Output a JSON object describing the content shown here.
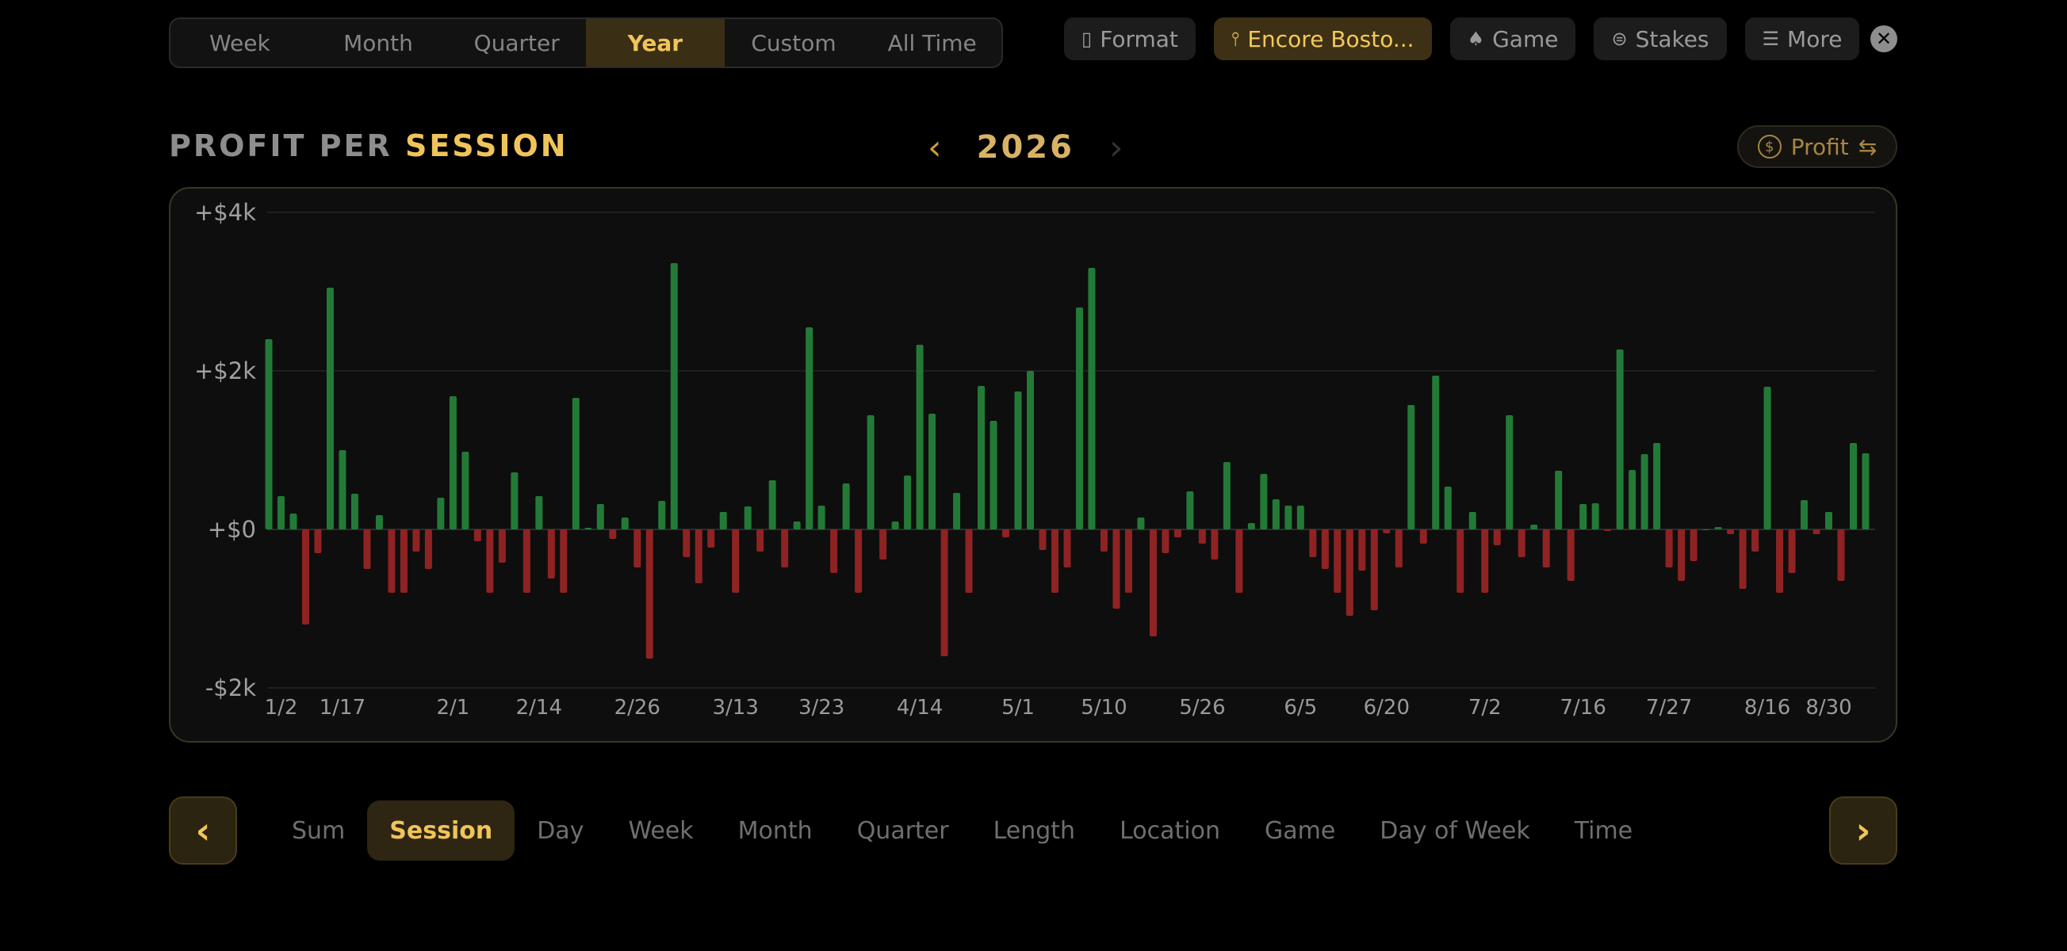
{
  "range_tabs": [
    {
      "label": "Week",
      "active": false
    },
    {
      "label": "Month",
      "active": false
    },
    {
      "label": "Quarter",
      "active": false
    },
    {
      "label": "Year",
      "active": true
    },
    {
      "label": "Custom",
      "active": false
    },
    {
      "label": "All Time",
      "active": false
    }
  ],
  "filters": [
    {
      "label": "Format",
      "icon": "format-icon",
      "glyph": "▯",
      "active": false
    },
    {
      "label": "Encore Bosto...",
      "icon": "location-pin-icon",
      "glyph": "⫯",
      "active": true
    },
    {
      "label": "Game",
      "icon": "spade-icon",
      "glyph": "♠",
      "active": false
    },
    {
      "label": "Stakes",
      "icon": "dollar-coin-icon",
      "glyph": "⊜",
      "active": false
    },
    {
      "label": "More",
      "icon": "sliders-icon",
      "glyph": "☰",
      "active": false
    }
  ],
  "close_glyph": "✕",
  "title": {
    "prefix": "PROFIT PER ",
    "highlight": "SESSION"
  },
  "year_nav": {
    "prev": "‹",
    "year": "2026",
    "next": "›"
  },
  "metric_toggle": {
    "label": "Profit",
    "coin": "$",
    "swap": "⇆"
  },
  "colors": {
    "positive": "#237a37",
    "negative": "#8f2323",
    "accent": "#f0c45a"
  },
  "chart_data": {
    "type": "bar",
    "title": "",
    "ylabel": "",
    "ylim": [
      -2000,
      4000
    ],
    "y_ticks": [
      {
        "value": 4000,
        "label": "+$4k"
      },
      {
        "value": 2000,
        "label": "+$2k"
      },
      {
        "value": 0,
        "label": "+$0"
      },
      {
        "value": -2000,
        "label": "-$2k"
      }
    ],
    "x_tick_labels": [
      {
        "index": 1,
        "label": "1/2"
      },
      {
        "index": 6,
        "label": "1/17"
      },
      {
        "index": 15,
        "label": "2/1"
      },
      {
        "index": 22,
        "label": "2/14"
      },
      {
        "index": 30,
        "label": "2/26"
      },
      {
        "index": 38,
        "label": "3/13"
      },
      {
        "index": 45,
        "label": "3/23"
      },
      {
        "index": 53,
        "label": "4/14"
      },
      {
        "index": 61,
        "label": "5/1"
      },
      {
        "index": 68,
        "label": "5/10"
      },
      {
        "index": 76,
        "label": "5/26"
      },
      {
        "index": 84,
        "label": "6/5"
      },
      {
        "index": 91,
        "label": "6/20"
      },
      {
        "index": 99,
        "label": "7/2"
      },
      {
        "index": 107,
        "label": "7/16"
      },
      {
        "index": 114,
        "label": "7/27"
      },
      {
        "index": 122,
        "label": "8/16"
      },
      {
        "index": 127,
        "label": "8/30"
      }
    ],
    "values": [
      2400,
      420,
      200,
      -1200,
      -300,
      3050,
      1000,
      450,
      -500,
      180,
      -800,
      -800,
      -280,
      -500,
      400,
      1680,
      980,
      -150,
      -800,
      -420,
      720,
      -800,
      420,
      -620,
      -800,
      1660,
      20,
      320,
      -120,
      150,
      -480,
      -1630,
      360,
      3360,
      -350,
      -680,
      -230,
      220,
      -800,
      290,
      -280,
      620,
      -480,
      100,
      2550,
      300,
      -550,
      580,
      -800,
      1440,
      -380,
      100,
      680,
      2330,
      1460,
      -1600,
      460,
      -800,
      1810,
      1370,
      -100,
      1740,
      2000,
      -260,
      -800,
      -480,
      2800,
      3300,
      -280,
      -1000,
      -800,
      150,
      -1350,
      -300,
      -100,
      480,
      -180,
      -380,
      850,
      -800,
      80,
      700,
      380,
      300,
      300,
      -350,
      -500,
      -800,
      -1090,
      -520,
      -1020,
      -50,
      -480,
      1570,
      -180,
      1940,
      540,
      -800,
      220,
      -800,
      -200,
      1440,
      -350,
      60,
      -480,
      740,
      -650,
      320,
      330,
      -20,
      2270,
      750,
      950,
      1090,
      -480,
      -650,
      -400,
      0,
      30,
      -60,
      -750,
      -280,
      1800,
      -800,
      -550,
      370,
      -60,
      220,
      -650,
      1090,
      960
    ]
  },
  "group_by": [
    {
      "label": "Sum",
      "active": false
    },
    {
      "label": "Session",
      "active": true
    },
    {
      "label": "Day",
      "active": false
    },
    {
      "label": "Week",
      "active": false
    },
    {
      "label": "Month",
      "active": false
    },
    {
      "label": "Quarter",
      "active": false
    },
    {
      "label": "Length",
      "active": false
    },
    {
      "label": "Location",
      "active": false
    },
    {
      "label": "Game",
      "active": false
    },
    {
      "label": "Day of Week",
      "active": false
    },
    {
      "label": "Time",
      "active": false
    }
  ],
  "group_nav": {
    "prev": "‹",
    "next": "›"
  }
}
